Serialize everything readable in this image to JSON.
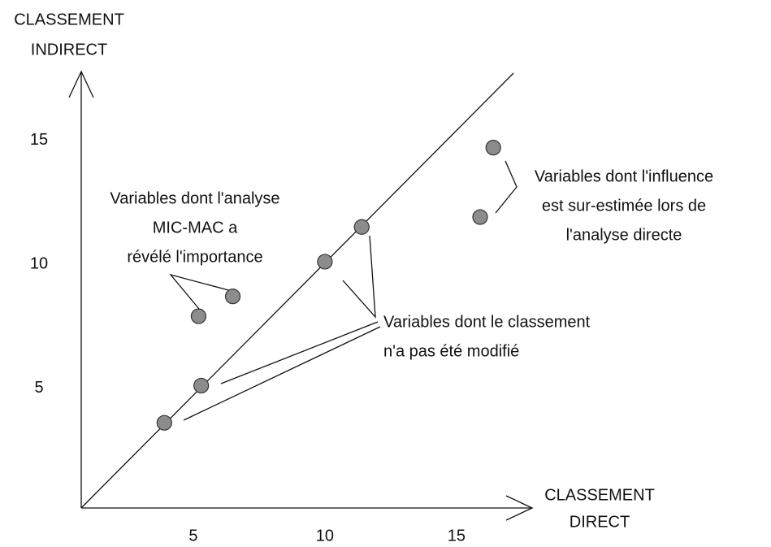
{
  "chart_data": {
    "type": "scatter",
    "ylabel_lines": [
      "CLASSEMENT",
      "INDIRECT"
    ],
    "xlabel_lines": [
      "CLASSEMENT",
      "DIRECT"
    ],
    "x": [
      3.9,
      5.3,
      10.0,
      11.4,
      5.2,
      6.5,
      15.9,
      16.4
    ],
    "values": [
      3.6,
      5.1,
      10.1,
      11.5,
      7.9,
      8.7,
      11.9,
      14.7
    ],
    "color": "#8c8c8c",
    "xlim": [
      0,
      18
    ],
    "ylim": [
      0,
      18
    ],
    "xticks": [
      5,
      10,
      15
    ],
    "yticks": [
      5,
      10,
      15
    ],
    "annotations": [
      {
        "lines": [
          "Variables dont l'analyse",
          "MIC-MAC a",
          "révélé l'importance"
        ]
      },
      {
        "lines": [
          "Variables dont l'influence",
          "est sur-estimée lors de",
          "l'analyse directe"
        ]
      },
      {
        "lines": [
          "Variables dont le classement",
          "n'a pas été modifié"
        ]
      }
    ]
  }
}
